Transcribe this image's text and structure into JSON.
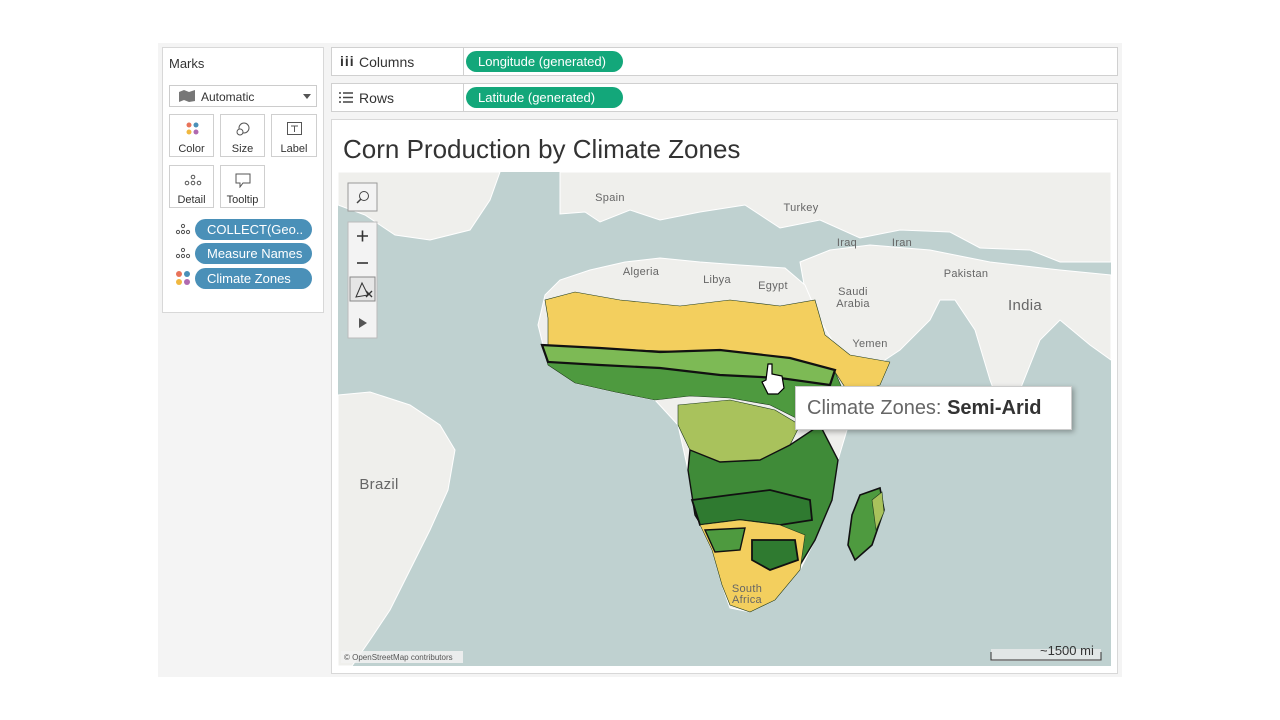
{
  "marks_card": {
    "title": "Marks",
    "mark_type": "Automatic",
    "buttons": [
      "Color",
      "Size",
      "Label",
      "Detail",
      "Tooltip"
    ],
    "pills": [
      "COLLECT(Geo..",
      "Measure Names",
      "Climate Zones"
    ]
  },
  "shelves": {
    "columns": {
      "label": "Columns",
      "pill": "Longitude (generated)"
    },
    "rows": {
      "label": "Rows",
      "pill": "Latitude (generated)"
    }
  },
  "view": {
    "title": "Corn Production by Climate Zones",
    "map_labels": [
      "Spain",
      "Turkey",
      "Iraq",
      "Iran",
      "Algeria",
      "Libya",
      "Egypt",
      "Saudi Arabia",
      "Pakistan",
      "India",
      "Yemen",
      "Brazil",
      "South Africa"
    ],
    "tooltip": {
      "field": "Climate Zones:",
      "value": "Semi-Arid"
    },
    "attribution": "© OpenStreetMap contributors",
    "scale": "~1500 mi"
  }
}
